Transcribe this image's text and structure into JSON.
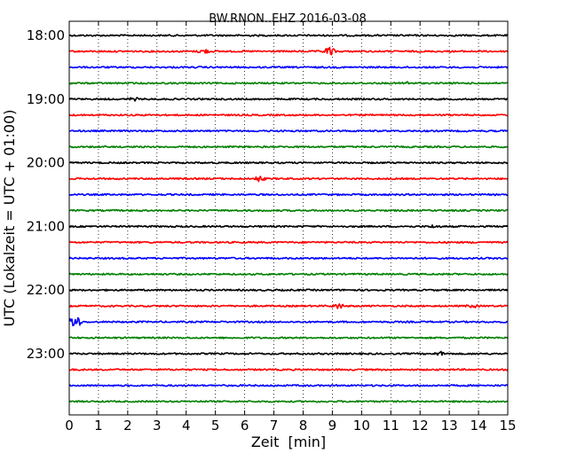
{
  "chart_data": {
    "type": "line",
    "title": "BW.RNON..EHZ 2016-03-08",
    "xlabel": "Zeit  [min]",
    "ylabel": "UTC (Lokalzeit = UTC + 01:00)",
    "xlim": [
      0,
      15
    ],
    "x_ticks": [
      "0",
      "1",
      "2",
      "3",
      "4",
      "5",
      "6",
      "7",
      "8",
      "9",
      "10",
      "11",
      "12",
      "13",
      "14",
      "15"
    ],
    "y_ticks": [
      "18:00",
      "19:00",
      "20:00",
      "21:00",
      "22:00",
      "23:00"
    ],
    "grid": "vertical dotted",
    "trace_colors": [
      "#000000",
      "#ff0000",
      "#0000ff",
      "#008000"
    ],
    "traces": [
      {
        "start": "18:00",
        "color": "#000000"
      },
      {
        "start": "18:15",
        "color": "#ff0000",
        "events": [
          {
            "t": 4.6,
            "amp": 2.5
          },
          {
            "t": 8.9,
            "amp": 5
          }
        ]
      },
      {
        "start": "18:30",
        "color": "#0000ff"
      },
      {
        "start": "18:45",
        "color": "#008000",
        "events": [
          {
            "t": 11.5,
            "amp": 1.5
          }
        ]
      },
      {
        "start": "19:00",
        "color": "#000000",
        "events": [
          {
            "t": 2.2,
            "amp": 1.5
          }
        ]
      },
      {
        "start": "19:15",
        "color": "#ff0000"
      },
      {
        "start": "19:30",
        "color": "#0000ff"
      },
      {
        "start": "19:45",
        "color": "#008000"
      },
      {
        "start": "20:00",
        "color": "#000000"
      },
      {
        "start": "20:15",
        "color": "#ff0000",
        "events": [
          {
            "t": 6.5,
            "amp": 3
          }
        ]
      },
      {
        "start": "20:30",
        "color": "#0000ff"
      },
      {
        "start": "20:45",
        "color": "#008000"
      },
      {
        "start": "21:00",
        "color": "#000000",
        "events": [
          {
            "t": 12.5,
            "amp": 1.5
          }
        ]
      },
      {
        "start": "21:15",
        "color": "#ff0000"
      },
      {
        "start": "21:30",
        "color": "#0000ff"
      },
      {
        "start": "21:45",
        "color": "#008000"
      },
      {
        "start": "22:00",
        "color": "#000000"
      },
      {
        "start": "22:15",
        "color": "#ff0000",
        "events": [
          {
            "t": 9.2,
            "amp": 3
          },
          {
            "t": 13.8,
            "amp": 1.5
          }
        ]
      },
      {
        "start": "22:30",
        "color": "#0000ff",
        "events": [
          {
            "t": 0.2,
            "amp": 9
          }
        ]
      },
      {
        "start": "22:45",
        "color": "#008000"
      },
      {
        "start": "23:00",
        "color": "#000000",
        "events": [
          {
            "t": 12.7,
            "amp": 2
          }
        ]
      },
      {
        "start": "23:15",
        "color": "#ff0000"
      },
      {
        "start": "23:30",
        "color": "#0000ff"
      },
      {
        "start": "23:45",
        "color": "#008000"
      }
    ]
  }
}
